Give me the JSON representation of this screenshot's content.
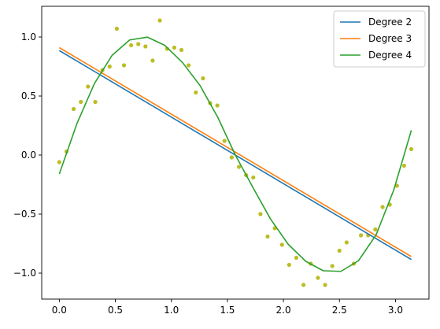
{
  "chart_data": {
    "type": "line",
    "title": "",
    "xlabel": "",
    "ylabel": "",
    "xlim": [
      -0.157,
      3.299
    ],
    "ylim": [
      -1.22,
      1.26
    ],
    "grid": false,
    "legend_position": "top-right",
    "x_ticks": [
      {
        "value": 0.0,
        "label": "0.0"
      },
      {
        "value": 0.5,
        "label": "0.5"
      },
      {
        "value": 1.0,
        "label": "1.0"
      },
      {
        "value": 1.5,
        "label": "1.5"
      },
      {
        "value": 2.0,
        "label": "2.0"
      },
      {
        "value": 2.5,
        "label": "2.5"
      },
      {
        "value": 3.0,
        "label": "3.0"
      }
    ],
    "y_ticks": [
      {
        "value": -1.0,
        "label": "−1.0"
      },
      {
        "value": -0.5,
        "label": "−0.5"
      },
      {
        "value": 0.0,
        "label": "0.0"
      },
      {
        "value": 0.5,
        "label": "0.5"
      },
      {
        "value": 1.0,
        "label": "1.0"
      }
    ],
    "scatter": {
      "color": "#bcbd22",
      "points": [
        [
          0.0,
          -0.06
        ],
        [
          0.064,
          0.03
        ],
        [
          0.128,
          0.39
        ],
        [
          0.192,
          0.45
        ],
        [
          0.256,
          0.58
        ],
        [
          0.321,
          0.45
        ],
        [
          0.385,
          0.72
        ],
        [
          0.449,
          0.75
        ],
        [
          0.513,
          1.07
        ],
        [
          0.577,
          0.76
        ],
        [
          0.641,
          0.93
        ],
        [
          0.705,
          0.94
        ],
        [
          0.769,
          0.92
        ],
        [
          0.833,
          0.8
        ],
        [
          0.897,
          1.14
        ],
        [
          0.962,
          0.9
        ],
        [
          1.026,
          0.91
        ],
        [
          1.09,
          0.89
        ],
        [
          1.154,
          0.76
        ],
        [
          1.218,
          0.53
        ],
        [
          1.282,
          0.65
        ],
        [
          1.346,
          0.44
        ],
        [
          1.41,
          0.42
        ],
        [
          1.474,
          0.12
        ],
        [
          1.538,
          -0.02
        ],
        [
          1.603,
          -0.1
        ],
        [
          1.667,
          -0.17
        ],
        [
          1.731,
          -0.19
        ],
        [
          1.795,
          -0.5
        ],
        [
          1.859,
          -0.69
        ],
        [
          1.923,
          -0.62
        ],
        [
          1.987,
          -0.76
        ],
        [
          2.051,
          -0.93
        ],
        [
          2.115,
          -0.87
        ],
        [
          2.179,
          -1.1
        ],
        [
          2.244,
          -0.92
        ],
        [
          2.308,
          -1.04
        ],
        [
          2.372,
          -1.1
        ],
        [
          2.436,
          -0.94
        ],
        [
          2.5,
          -0.81
        ],
        [
          2.564,
          -0.74
        ],
        [
          2.628,
          -0.92
        ],
        [
          2.692,
          -0.68
        ],
        [
          2.756,
          -0.68
        ],
        [
          2.82,
          -0.63
        ],
        [
          2.885,
          -0.44
        ],
        [
          2.949,
          -0.42
        ],
        [
          3.013,
          -0.26
        ],
        [
          3.077,
          -0.09
        ],
        [
          3.141,
          0.05
        ]
      ]
    },
    "series": [
      {
        "name": "Degree 2",
        "color": "#1f77b4",
        "x": [
          0.0,
          3.1416
        ],
        "y": [
          0.885,
          -0.885
        ]
      },
      {
        "name": "Degree 3",
        "color": "#ff7f0e",
        "x": [
          0.0,
          3.1416
        ],
        "y": [
          0.91,
          -0.86
        ]
      },
      {
        "name": "Degree 4",
        "color": "#2ca02c",
        "x": [
          0.0,
          0.157,
          0.314,
          0.471,
          0.628,
          0.785,
          0.942,
          1.1,
          1.257,
          1.414,
          1.571,
          1.728,
          1.885,
          2.042,
          2.199,
          2.356,
          2.513,
          2.67,
          2.827,
          2.985,
          3.1416
        ],
        "y": [
          -0.16,
          0.266,
          0.607,
          0.845,
          0.975,
          0.999,
          0.929,
          0.783,
          0.587,
          0.32,
          0.0,
          -0.275,
          -0.542,
          -0.755,
          -0.9,
          -0.98,
          -0.985,
          -0.895,
          -0.676,
          -0.295,
          0.21
        ]
      }
    ]
  }
}
